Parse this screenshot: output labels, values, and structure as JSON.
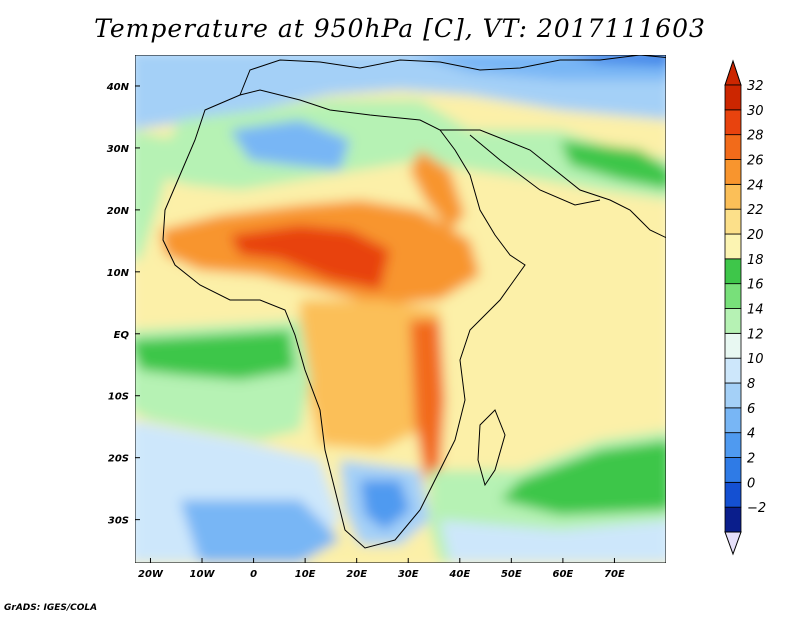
{
  "title": "Temperature at 950hPa [C], VT: 2017111603",
  "footer": "GrADS: IGES/COLA",
  "map": {
    "lon_range": [
      -23,
      80
    ],
    "lat_range": [
      -37,
      45
    ],
    "lat_ticks": [
      {
        "value": 40,
        "label": "40N"
      },
      {
        "value": 30,
        "label": "30N"
      },
      {
        "value": 20,
        "label": "20N"
      },
      {
        "value": 10,
        "label": "10N"
      },
      {
        "value": 0,
        "label": "EQ"
      },
      {
        "value": -10,
        "label": "10S"
      },
      {
        "value": -20,
        "label": "20S"
      },
      {
        "value": -30,
        "label": "30S"
      }
    ],
    "lon_ticks": [
      {
        "value": -20,
        "label": "20W"
      },
      {
        "value": -10,
        "label": "10W"
      },
      {
        "value": 0,
        "label": "0"
      },
      {
        "value": 10,
        "label": "10E"
      },
      {
        "value": 20,
        "label": "20E"
      },
      {
        "value": 30,
        "label": "30E"
      },
      {
        "value": 40,
        "label": "40E"
      },
      {
        "value": 50,
        "label": "50E"
      },
      {
        "value": 60,
        "label": "60E"
      },
      {
        "value": 70,
        "label": "70E"
      }
    ]
  },
  "colorbar": {
    "levels": [
      -2,
      0,
      2,
      4,
      6,
      8,
      10,
      12,
      14,
      16,
      18,
      20,
      22,
      24,
      26,
      28,
      30,
      32
    ],
    "colors": [
      "#0a1e8c",
      "#1450d2",
      "#2f7be6",
      "#4f9af0",
      "#78b6f5",
      "#a4d0f7",
      "#cde7fb",
      "#e8f8f2",
      "#b6f2b4",
      "#78e07a",
      "#3ec64a",
      "#fcf4b2",
      "#fce08a",
      "#fbbf58",
      "#f8952e",
      "#f26b1a",
      "#e8430e",
      "#cc2600"
    ],
    "under_color": "#e6e0fa",
    "over_color": "#cc2600"
  }
}
